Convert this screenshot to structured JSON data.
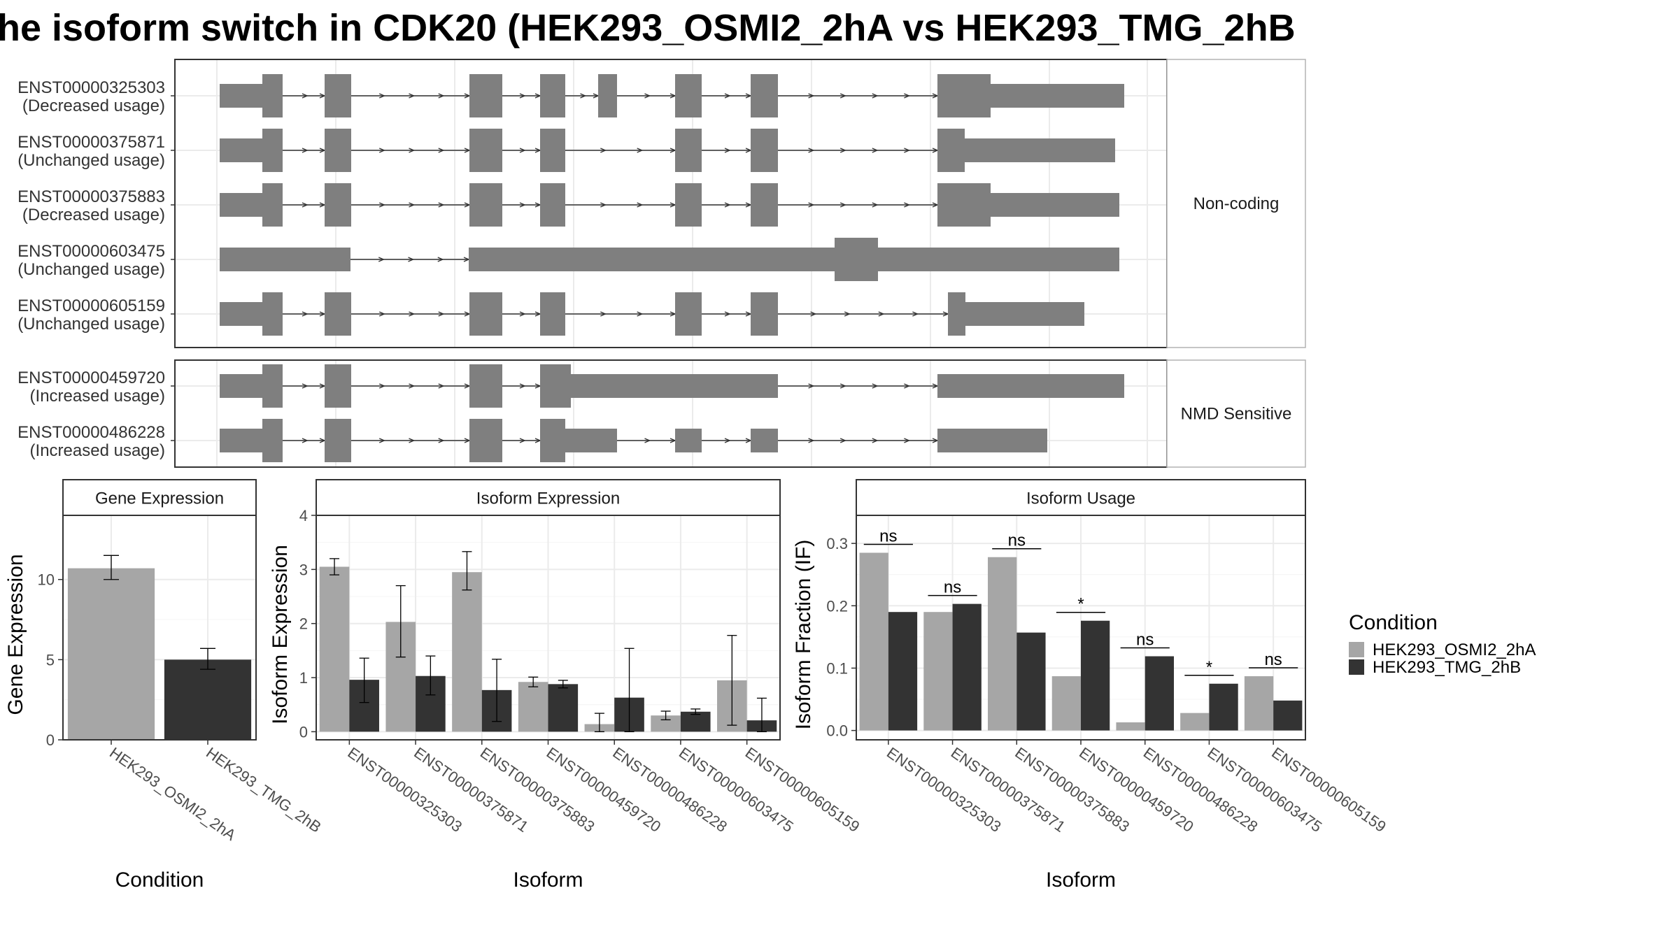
{
  "title": "he isoform switch in CDK20 (HEK293_OSMI2_2hA vs HEK293_TMG_2hB",
  "structure": {
    "groups": [
      {
        "label": "Non-coding",
        "transcripts": [
          {
            "id": "ENST00000325303",
            "usage": "(Decreased usage)"
          },
          {
            "id": "ENST00000375871",
            "usage": "(Unchanged usage)"
          },
          {
            "id": "ENST00000375883",
            "usage": "(Decreased usage)"
          },
          {
            "id": "ENST00000603475",
            "usage": "(Unchanged usage)"
          },
          {
            "id": "ENST00000605159",
            "usage": "(Unchanged usage)"
          }
        ]
      },
      {
        "label": "NMD Sensitive",
        "transcripts": [
          {
            "id": "ENST00000459720",
            "usage": "(Increased usage)"
          },
          {
            "id": "ENST00000486228",
            "usage": "(Increased usage)"
          }
        ]
      }
    ]
  },
  "legend": {
    "title": "Condition",
    "items": [
      {
        "label": "HEK293_OSMI2_2hA",
        "color": "#a6a6a6"
      },
      {
        "label": "HEK293_TMG_2hB",
        "color": "#333333"
      }
    ]
  },
  "chart_data": [
    {
      "type": "bar",
      "title": "Gene Expression",
      "xlabel": "Condition",
      "ylabel": "Gene Expression",
      "ylim": [
        0,
        14
      ],
      "yticks": [
        0,
        5,
        10
      ],
      "categories": [
        "HEK293_OSMI2_2hA",
        "HEK293_TMG_2hB"
      ],
      "values": [
        10.7,
        5.0
      ],
      "err_low": [
        10.0,
        4.4
      ],
      "err_high": [
        11.5,
        5.7
      ],
      "colors": [
        "#a6a6a6",
        "#333333"
      ]
    },
    {
      "type": "bar",
      "title": "Isoform Expression",
      "xlabel": "Isoform",
      "ylabel": "Isoform Expression",
      "ylim": [
        -0.15,
        4.0
      ],
      "yticks": [
        0,
        1,
        2,
        3,
        4
      ],
      "categories": [
        "ENST00000325303",
        "ENST00000375871",
        "ENST00000375883",
        "ENST00000459720",
        "ENST00000486228",
        "ENST00000603475",
        "ENST00000605159"
      ],
      "series": [
        {
          "name": "HEK293_OSMI2_2hA",
          "color": "#a6a6a6",
          "values": [
            3.05,
            2.03,
            2.95,
            0.92,
            0.14,
            0.3,
            0.95
          ],
          "err_low": [
            2.9,
            1.38,
            2.62,
            0.83,
            0.0,
            0.22,
            0.12
          ],
          "err_high": [
            3.2,
            2.7,
            3.33,
            1.01,
            0.34,
            0.38,
            1.78
          ]
        },
        {
          "name": "HEK293_TMG_2hB",
          "color": "#333333",
          "values": [
            0.96,
            1.03,
            0.77,
            0.88,
            0.63,
            0.37,
            0.21
          ],
          "err_low": [
            0.54,
            0.68,
            0.19,
            0.81,
            0.0,
            0.32,
            0.0
          ],
          "err_high": [
            1.36,
            1.4,
            1.34,
            0.95,
            1.54,
            0.42,
            0.62
          ]
        }
      ]
    },
    {
      "type": "bar",
      "title": "Isoform Usage",
      "xlabel": "Isoform",
      "ylabel": "Isoform Fraction (IF)",
      "ylim": [
        -0.015,
        0.345
      ],
      "yticks": [
        0.0,
        0.1,
        0.2,
        0.3
      ],
      "ytick_labels": [
        "0.0",
        "0.1",
        "0.2",
        "0.3"
      ],
      "categories": [
        "ENST00000325303",
        "ENST00000375871",
        "ENST00000375883",
        "ENST00000459720",
        "ENST00000486228",
        "ENST00000603475",
        "ENST00000605159"
      ],
      "series": [
        {
          "name": "HEK293_OSMI2_2hA",
          "color": "#a6a6a6",
          "values": [
            0.285,
            0.19,
            0.278,
            0.087,
            0.013,
            0.028,
            0.087
          ]
        },
        {
          "name": "HEK293_TMG_2hB",
          "color": "#333333",
          "values": [
            0.19,
            0.203,
            0.157,
            0.176,
            0.119,
            0.075,
            0.048
          ]
        }
      ],
      "significance": [
        "ns",
        "ns",
        "ns",
        "*",
        "ns",
        "*",
        "ns"
      ]
    }
  ]
}
